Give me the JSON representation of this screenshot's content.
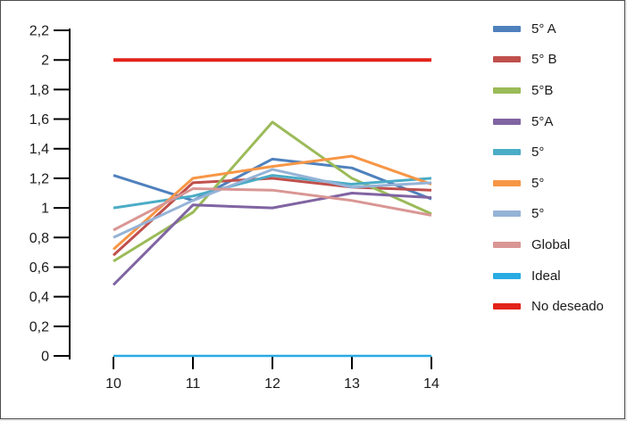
{
  "chart_data": {
    "type": "line",
    "title": "",
    "xlabel": "",
    "ylabel": "",
    "x": [
      10,
      11,
      12,
      13,
      14
    ],
    "xtick_labels": [
      "10",
      "11",
      "12",
      "13",
      "14"
    ],
    "ytick_labels": [
      "0",
      "0,2",
      "0,4",
      "0,6",
      "0,8",
      "1",
      "1,2",
      "1,4",
      "1,6",
      "1,8",
      "2",
      "2,2"
    ],
    "ylim": [
      0,
      2.2
    ],
    "ytick_step": 0.2,
    "grid": false,
    "legend_position": "right",
    "series": [
      {
        "name": "5° A",
        "color": "#4F81BD",
        "width": 3,
        "values": [
          1.22,
          1.05,
          1.33,
          1.27,
          1.06
        ]
      },
      {
        "name": "5° B",
        "color": "#C0504D",
        "width": 3,
        "values": [
          0.68,
          1.17,
          1.2,
          1.14,
          1.12
        ]
      },
      {
        "name": "5°B",
        "color": "#9BBB59",
        "width": 3,
        "values": [
          0.64,
          0.97,
          1.58,
          1.2,
          0.96
        ]
      },
      {
        "name": "5°A",
        "color": "#8064A2",
        "width": 3,
        "values": [
          0.48,
          1.02,
          1.0,
          1.1,
          1.07
        ]
      },
      {
        "name": "5°",
        "color": "#4BACC6",
        "width": 3,
        "values": [
          1.0,
          1.08,
          1.22,
          1.16,
          1.2
        ]
      },
      {
        "name": "5°",
        "color": "#F79646",
        "width": 3,
        "values": [
          0.72,
          1.2,
          1.28,
          1.35,
          1.16
        ]
      },
      {
        "name": "5°",
        "color": "#95B3D7",
        "width": 3,
        "values": [
          0.8,
          1.05,
          1.26,
          1.14,
          1.17
        ]
      },
      {
        "name": "Global",
        "color": "#D99694",
        "width": 3,
        "values": [
          0.85,
          1.13,
          1.12,
          1.05,
          0.95
        ]
      },
      {
        "name": "Ideal",
        "color": "#29ABE2",
        "width": 2.5,
        "values": [
          0,
          0,
          0,
          0,
          0
        ]
      },
      {
        "name": "No deseado",
        "color": "#E2231A",
        "width": 4,
        "values": [
          2,
          2,
          2,
          2,
          2
        ]
      }
    ]
  },
  "colors": {
    "axis": "#000000",
    "tick_label": "#1a1a1a",
    "frame_border": "#4d4d4d",
    "background": "#ffffff"
  }
}
